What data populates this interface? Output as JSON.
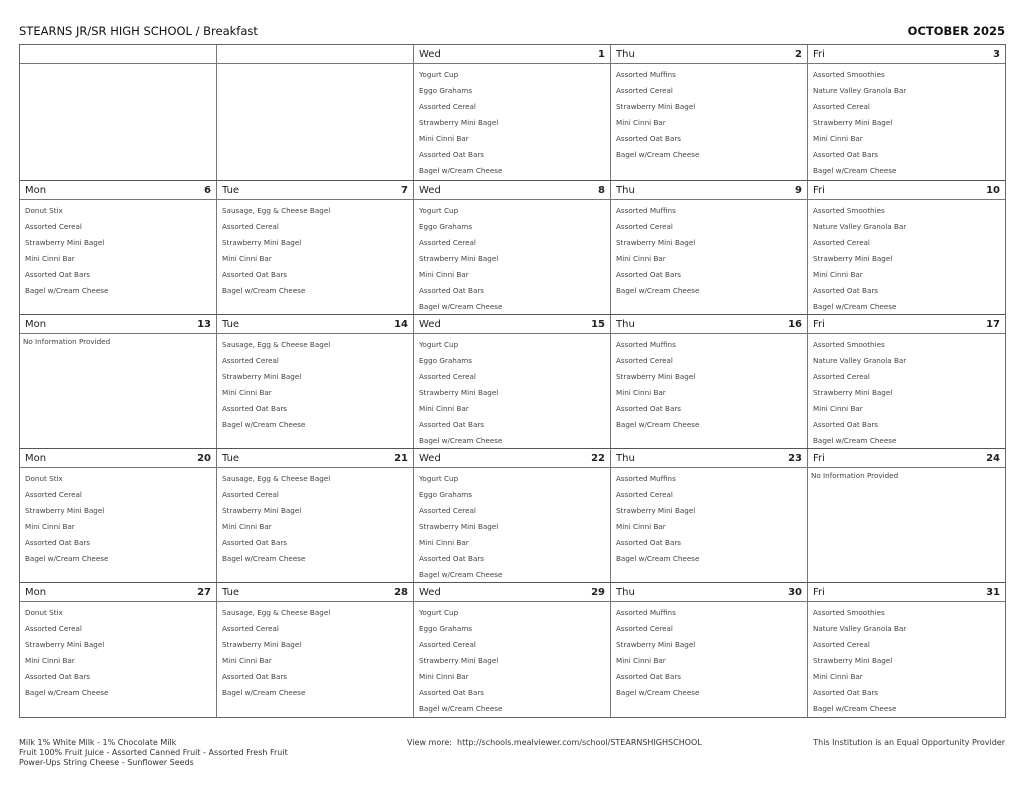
{
  "header": {
    "title": "STEARNS JR/SR HIGH SCHOOL / Breakfast",
    "month": "OCTOBER 2025"
  },
  "weeks": [
    [
      null,
      null,
      {
        "day": "Wed",
        "date": "1",
        "items": [
          "Yogurt Cup",
          "Eggo Grahams",
          "Assorted Cereal",
          "Strawberry Mini Bagel",
          "Mini Cinni Bar",
          "Assorted Oat Bars",
          "Bagel w/Cream Cheese"
        ]
      },
      {
        "day": "Thu",
        "date": "2",
        "items": [
          "Assorted Muffins",
          "Assorted Cereal",
          "Strawberry Mini Bagel",
          "Mini Cinni Bar",
          "Assorted Oat Bars",
          "Bagel w/Cream Cheese"
        ]
      },
      {
        "day": "Fri",
        "date": "3",
        "items": [
          "Assorted Smoothies",
          "Nature Valley Granola Bar",
          "Assorted Cereal",
          "Strawberry Mini Bagel",
          "Mini Cinni Bar",
          "Assorted Oat Bars",
          "Bagel w/Cream Cheese"
        ]
      }
    ],
    [
      {
        "day": "Mon",
        "date": "6",
        "items": [
          "Donut Stix",
          "Assorted Cereal",
          "Strawberry Mini Bagel",
          "Mini Cinni Bar",
          "Assorted Oat Bars",
          "Bagel w/Cream Cheese"
        ]
      },
      {
        "day": "Tue",
        "date": "7",
        "items": [
          "Sausage, Egg & Cheese Bagel",
          "Assorted Cereal",
          "Strawberry Mini Bagel",
          "Mini Cinni Bar",
          "Assorted Oat Bars",
          "Bagel w/Cream Cheese"
        ]
      },
      {
        "day": "Wed",
        "date": "8",
        "items": [
          "Yogurt Cup",
          "Eggo Grahams",
          "Assorted Cereal",
          "Strawberry Mini Bagel",
          "Mini Cinni Bar",
          "Assorted Oat Bars",
          "Bagel w/Cream Cheese"
        ]
      },
      {
        "day": "Thu",
        "date": "9",
        "items": [
          "Assorted Muffins",
          "Assorted Cereal",
          "Strawberry Mini Bagel",
          "Mini Cinni Bar",
          "Assorted Oat Bars",
          "Bagel w/Cream Cheese"
        ]
      },
      {
        "day": "Fri",
        "date": "10",
        "items": [
          "Assorted Smoothies",
          "Nature Valley Granola Bar",
          "Assorted Cereal",
          "Strawberry Mini Bagel",
          "Mini Cinni Bar",
          "Assorted Oat Bars",
          "Bagel w/Cream Cheese"
        ]
      }
    ],
    [
      {
        "day": "Mon",
        "date": "13",
        "note": "No Information Provided"
      },
      {
        "day": "Tue",
        "date": "14",
        "items": [
          "Sausage, Egg & Cheese Bagel",
          "Assorted Cereal",
          "Strawberry Mini Bagel",
          "Mini Cinni Bar",
          "Assorted Oat Bars",
          "Bagel w/Cream Cheese"
        ]
      },
      {
        "day": "Wed",
        "date": "15",
        "items": [
          "Yogurt Cup",
          "Eggo Grahams",
          "Assorted Cereal",
          "Strawberry Mini Bagel",
          "Mini Cinni Bar",
          "Assorted Oat Bars",
          "Bagel w/Cream Cheese"
        ]
      },
      {
        "day": "Thu",
        "date": "16",
        "items": [
          "Assorted Muffins",
          "Assorted Cereal",
          "Strawberry Mini Bagel",
          "Mini Cinni Bar",
          "Assorted Oat Bars",
          "Bagel w/Cream Cheese"
        ]
      },
      {
        "day": "Fri",
        "date": "17",
        "items": [
          "Assorted Smoothies",
          "Nature Valley Granola Bar",
          "Assorted Cereal",
          "Strawberry Mini Bagel",
          "Mini Cinni Bar",
          "Assorted Oat Bars",
          "Bagel w/Cream Cheese"
        ]
      }
    ],
    [
      {
        "day": "Mon",
        "date": "20",
        "items": [
          "Donut Stix",
          "Assorted Cereal",
          "Strawberry Mini Bagel",
          "Mini Cinni Bar",
          "Assorted Oat Bars",
          "Bagel w/Cream Cheese"
        ]
      },
      {
        "day": "Tue",
        "date": "21",
        "items": [
          "Sausage, Egg & Cheese Bagel",
          "Assorted Cereal",
          "Strawberry Mini Bagel",
          "Mini Cinni Bar",
          "Assorted Oat Bars",
          "Bagel w/Cream Cheese"
        ]
      },
      {
        "day": "Wed",
        "date": "22",
        "items": [
          "Yogurt Cup",
          "Eggo Grahams",
          "Assorted Cereal",
          "Strawberry Mini Bagel",
          "Mini Cinni Bar",
          "Assorted Oat Bars",
          "Bagel w/Cream Cheese"
        ]
      },
      {
        "day": "Thu",
        "date": "23",
        "items": [
          "Assorted Muffins",
          "Assorted Cereal",
          "Strawberry Mini Bagel",
          "Mini Cinni Bar",
          "Assorted Oat Bars",
          "Bagel w/Cream Cheese"
        ]
      },
      {
        "day": "Fri",
        "date": "24",
        "note": "No Information Provided"
      }
    ],
    [
      {
        "day": "Mon",
        "date": "27",
        "items": [
          "Donut Stix",
          "Assorted Cereal",
          "Strawberry Mini Bagel",
          "Mini Cinni Bar",
          "Assorted Oat Bars",
          "Bagel w/Cream Cheese"
        ]
      },
      {
        "day": "Tue",
        "date": "28",
        "items": [
          "Sausage, Egg & Cheese Bagel",
          "Assorted Cereal",
          "Strawberry Mini Bagel",
          "Mini Cinni Bar",
          "Assorted Oat Bars",
          "Bagel w/Cream Cheese"
        ]
      },
      {
        "day": "Wed",
        "date": "29",
        "items": [
          "Yogurt Cup",
          "Eggo Grahams",
          "Assorted Cereal",
          "Strawberry Mini Bagel",
          "Mini Cinni Bar",
          "Assorted Oat Bars",
          "Bagel w/Cream Cheese"
        ]
      },
      {
        "day": "Thu",
        "date": "30",
        "items": [
          "Assorted Muffins",
          "Assorted Cereal",
          "Strawberry Mini Bagel",
          "Mini Cinni Bar",
          "Assorted Oat Bars",
          "Bagel w/Cream Cheese"
        ]
      },
      {
        "day": "Fri",
        "date": "31",
        "items": [
          "Assorted Smoothies",
          "Nature Valley Granola Bar",
          "Assorted Cereal",
          "Strawberry Mini Bagel",
          "Mini Cinni Bar",
          "Assorted Oat Bars",
          "Bagel w/Cream Cheese"
        ]
      }
    ]
  ],
  "footer": {
    "lines": [
      "Milk 1% White Milk - 1% Chocolate Milk",
      "Fruit 100% Fruit Juice - Assorted Canned Fruit - Assorted Fresh Fruit",
      "Power-Ups String Cheese - Sunflower Seeds"
    ],
    "view_more_label": "View more:",
    "view_more_url": "http://schools.mealviewer.com/school/STEARNSHIGHSCHOOL",
    "equal_opportunity": "This Institution is an Equal Opportunity Provider"
  }
}
